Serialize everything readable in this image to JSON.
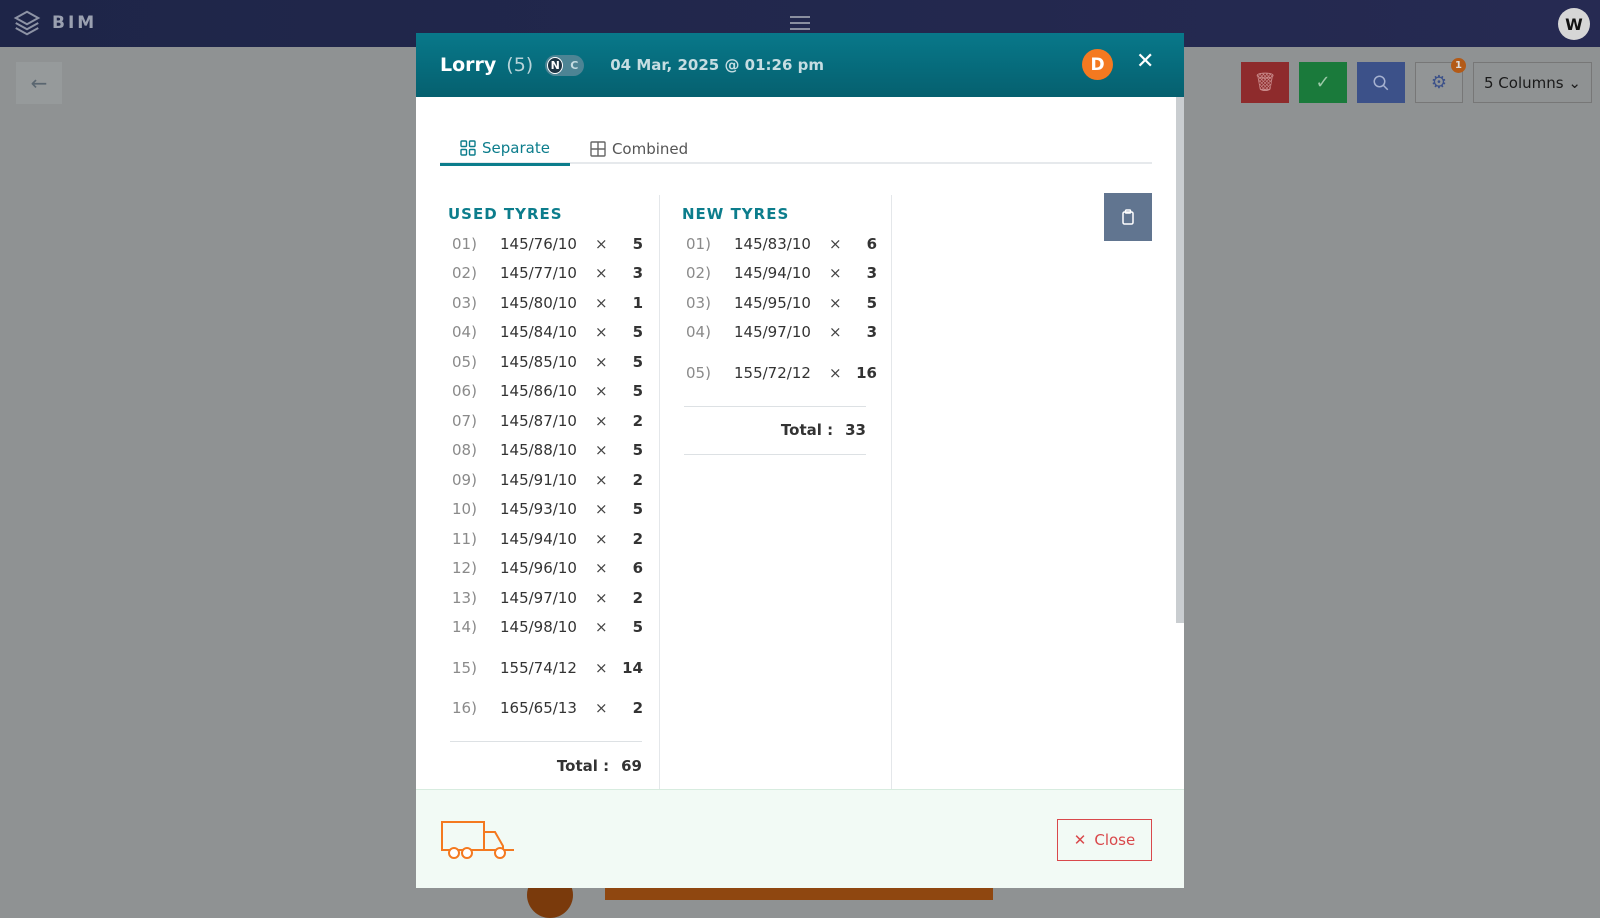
{
  "app": {
    "logo_text": "BIM",
    "user_initial": "W"
  },
  "toolbar": {
    "settings_badge": "1",
    "columns_label": "5 Columns"
  },
  "modal": {
    "title": "Lorry",
    "count": "(5)",
    "toggle_n": "N",
    "toggle_c": "C",
    "date": "04 Mar, 2025 @ 01:26 pm",
    "avatar_initial": "D",
    "tabs": [
      {
        "label": "Separate",
        "active": true
      },
      {
        "label": "Combined",
        "active": false
      }
    ],
    "used": {
      "heading": "USED TYRES",
      "items": [
        {
          "no": "01)",
          "size": "145/76/10",
          "qty": "5"
        },
        {
          "no": "02)",
          "size": "145/77/10",
          "qty": "3"
        },
        {
          "no": "03)",
          "size": "145/80/10",
          "qty": "1"
        },
        {
          "no": "04)",
          "size": "145/84/10",
          "qty": "5"
        },
        {
          "no": "05)",
          "size": "145/85/10",
          "qty": "5"
        },
        {
          "no": "06)",
          "size": "145/86/10",
          "qty": "5"
        },
        {
          "no": "07)",
          "size": "145/87/10",
          "qty": "2"
        },
        {
          "no": "08)",
          "size": "145/88/10",
          "qty": "5"
        },
        {
          "no": "09)",
          "size": "145/91/10",
          "qty": "2"
        },
        {
          "no": "10)",
          "size": "145/93/10",
          "qty": "5"
        },
        {
          "no": "11)",
          "size": "145/94/10",
          "qty": "2"
        },
        {
          "no": "12)",
          "size": "145/96/10",
          "qty": "6"
        },
        {
          "no": "13)",
          "size": "145/97/10",
          "qty": "2"
        },
        {
          "no": "14)",
          "size": "145/98/10",
          "qty": "5"
        },
        {
          "no": "15)",
          "size": "155/74/12",
          "qty": "14"
        },
        {
          "no": "16)",
          "size": "165/65/13",
          "qty": "2"
        }
      ],
      "total_label": "Total :",
      "total": "69"
    },
    "new": {
      "heading": "NEW TYRES",
      "items": [
        {
          "no": "01)",
          "size": "145/83/10",
          "qty": "6"
        },
        {
          "no": "02)",
          "size": "145/94/10",
          "qty": "3"
        },
        {
          "no": "03)",
          "size": "145/95/10",
          "qty": "5"
        },
        {
          "no": "04)",
          "size": "145/97/10",
          "qty": "3"
        },
        {
          "no": "05)",
          "size": "155/72/12",
          "qty": "16"
        }
      ],
      "total_label": "Total :",
      "total": "33"
    },
    "multiply_sign": "×",
    "close_label": "Close"
  },
  "colors": {
    "accent": "#0c7d8c",
    "header": "#066a7a",
    "orange": "#f47920",
    "danger": "#d9484b"
  }
}
